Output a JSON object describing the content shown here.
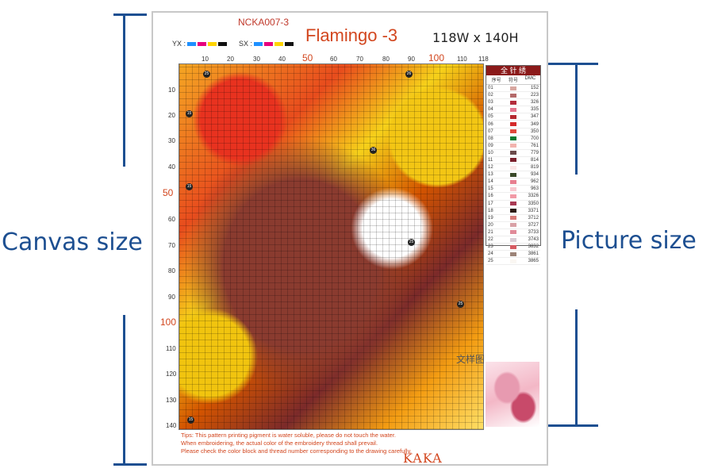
{
  "annotations": {
    "canvas_label": "Canvas size",
    "picture_label": "Picture size"
  },
  "sheet": {
    "code": "NCKA007-3",
    "title": "Flamingo -3",
    "size": "118W x 140H",
    "key_yx": "YX :",
    "key_sx": "SX :",
    "key_colors": [
      "#1e90ff",
      "#e6007e",
      "#ffd400",
      "#111111"
    ],
    "x_ticks": [
      "10",
      "20",
      "30",
      "40",
      "50",
      "60",
      "70",
      "80",
      "90",
      "100",
      "110",
      "118"
    ],
    "y_ticks": [
      "10",
      "20",
      "30",
      "40",
      "50",
      "60",
      "70",
      "80",
      "90",
      "100",
      "110",
      "120",
      "130",
      "140"
    ],
    "marker_labels": [
      "25",
      "26",
      "36",
      "15",
      "15",
      "25",
      "25",
      "15"
    ],
    "legend": {
      "header": "全 针 绣",
      "col_no": "序号",
      "col_sym": "符号",
      "col_dmc": "DMC",
      "rows": [
        {
          "no": "01",
          "dmc": "152",
          "color": "#d8a7a0"
        },
        {
          "no": "02",
          "dmc": "223",
          "color": "#b46a6a"
        },
        {
          "no": "03",
          "dmc": "326",
          "color": "#b32c3c"
        },
        {
          "no": "04",
          "dmc": "335",
          "color": "#e3748c"
        },
        {
          "no": "05",
          "dmc": "347",
          "color": "#b5282f"
        },
        {
          "no": "06",
          "dmc": "349",
          "color": "#d42b2b"
        },
        {
          "no": "07",
          "dmc": "350",
          "color": "#e0493c"
        },
        {
          "no": "08",
          "dmc": "700",
          "color": "#0c7a32"
        },
        {
          "no": "09",
          "dmc": "761",
          "color": "#f2b4ae"
        },
        {
          "no": "10",
          "dmc": "779",
          "color": "#6a4a4a"
        },
        {
          "no": "11",
          "dmc": "814",
          "color": "#7a1f2b"
        },
        {
          "no": "12",
          "dmc": "819",
          "color": "#fbe6e6"
        },
        {
          "no": "13",
          "dmc": "934",
          "color": "#3a4a2a"
        },
        {
          "no": "14",
          "dmc": "962",
          "color": "#e77e8f"
        },
        {
          "no": "15",
          "dmc": "963",
          "color": "#f7c8cf"
        },
        {
          "no": "16",
          "dmc": "3326",
          "color": "#f19aa6"
        },
        {
          "no": "17",
          "dmc": "3350",
          "color": "#a93a54"
        },
        {
          "no": "18",
          "dmc": "3371",
          "color": "#2b1a12"
        },
        {
          "no": "19",
          "dmc": "3712",
          "color": "#d77b78"
        },
        {
          "no": "20",
          "dmc": "3727",
          "color": "#d9a1a6"
        },
        {
          "no": "21",
          "dmc": "3733",
          "color": "#e08a98"
        },
        {
          "no": "22",
          "dmc": "3743",
          "color": "#d8ccd4"
        },
        {
          "no": "23",
          "dmc": "3832",
          "color": "#d65a62"
        },
        {
          "no": "24",
          "dmc": "3861",
          "color": "#9c8478"
        },
        {
          "no": "25",
          "dmc": "3865",
          "color": "#faf7f2"
        }
      ]
    },
    "stamp": "文样图",
    "tips": [
      "Tips: This pattern printing pigment is water soluble, please do not touch the water.",
      "When embroidering, the actual color of the embroidery thread shall prevail.",
      "Please check the color block and thread number corresponding to the drawing carefully."
    ],
    "brand": "KAKA"
  }
}
